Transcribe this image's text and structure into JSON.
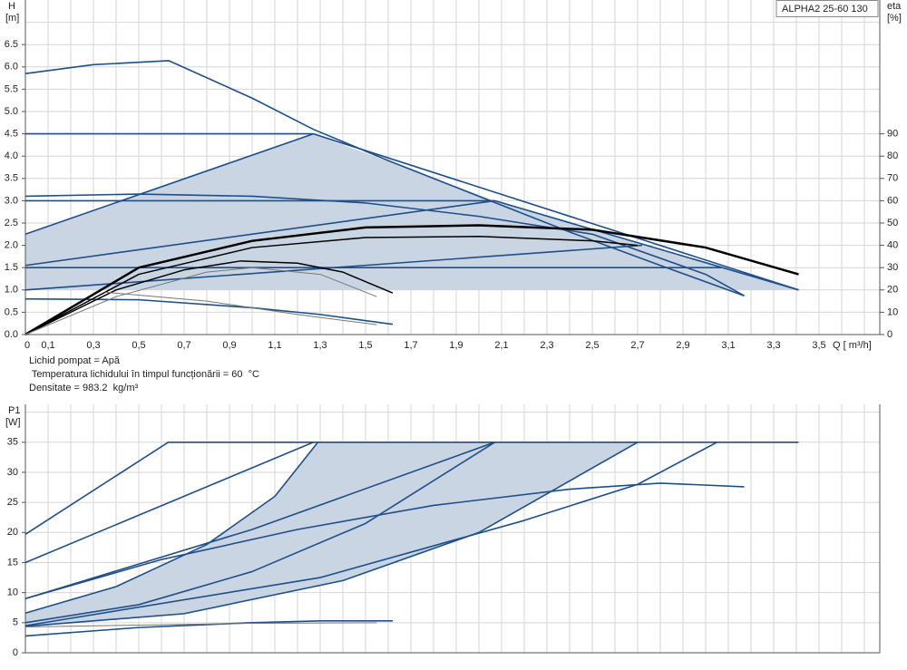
{
  "chart_data": [
    {
      "type": "line",
      "title": "ALPHA2 25-60 130",
      "y_label": "H",
      "y_unit": "[m]",
      "y2_label": "eta",
      "y2_unit": "[%]",
      "x_label": "Q [ m³/h]",
      "notes": [
        "Lichid pompat = Apă",
        " Temperatura lichidului în timpul funcționării = 60  °C",
        "Densitate = 983.2  kg/m³"
      ],
      "xlim": [
        0,
        3.768
      ],
      "xticks": [
        0,
        {
          "value": 0.1,
          "label": "0,1"
        },
        {
          "value": 0.3,
          "label": "0,3"
        },
        {
          "value": 0.5,
          "label": "0,5"
        },
        {
          "value": 0.7,
          "label": "0,7"
        },
        {
          "value": 0.9,
          "label": "0,9"
        },
        {
          "value": 1.1,
          "label": "1,1"
        },
        {
          "value": 1.3,
          "label": "1,3"
        },
        {
          "value": 1.5,
          "label": "1,5"
        },
        {
          "value": 1.7,
          "label": "1,7"
        },
        {
          "value": 1.9,
          "label": "1,9"
        },
        {
          "value": 2.1,
          "label": "2,1"
        },
        {
          "value": 2.3,
          "label": "2,3"
        },
        {
          "value": 2.5,
          "label": "2,5"
        },
        {
          "value": 2.7,
          "label": "2,7"
        },
        {
          "value": 2.9,
          "label": "2,9"
        },
        {
          "value": 3.1,
          "label": "3,1"
        },
        {
          "value": 3.3,
          "label": "3,3"
        },
        {
          "value": 3.5,
          "label": "3,5"
        }
      ],
      "ylim": [
        0,
        7.5
      ],
      "yticks": [
        {
          "value": 0,
          "label": "0.0"
        },
        0.5,
        {
          "value": 1,
          "label": "1.0"
        },
        1.5,
        {
          "value": 2,
          "label": "2.0"
        },
        2.5,
        {
          "value": 3,
          "label": "3.0"
        },
        3.5,
        {
          "value": 4,
          "label": "4.0"
        },
        4.5,
        {
          "value": 5,
          "label": "5.0"
        },
        5.5,
        {
          "value": 6,
          "label": "6.0"
        },
        6.5
      ],
      "y2lim": [
        0,
        150
      ],
      "y2ticks": [
        0,
        10,
        20,
        30,
        40,
        50,
        60,
        70,
        80,
        90
      ],
      "grid": true,
      "region": {
        "color": "#c9d5e3",
        "x": [
          0,
          1.27,
          2.07,
          3.41,
          0
        ],
        "y": [
          2.25,
          4.5,
          3.0,
          1.0,
          1.0
        ]
      },
      "series": [
        {
          "color": "#1d4f8a",
          "x": [
            0,
            0.3,
            0.632,
            1.0,
            1.27,
            1.6,
            2.0,
            2.4,
            2.8,
            3.17
          ],
          "values": [
            5.85,
            6.05,
            6.14,
            5.3,
            4.6,
            3.9,
            3.1,
            2.3,
            1.55,
            0.87
          ]
        },
        {
          "color": "#1d4f8a",
          "x": [
            0,
            1.27,
            3.41
          ],
          "values": [
            2.25,
            4.5,
            1.0
          ]
        },
        {
          "color": "#1d4f8a",
          "x": [
            0,
            1.27
          ],
          "values": [
            4.5,
            4.5
          ]
        },
        {
          "color": "#1d4f8a",
          "x": [
            0,
            2.07,
            3.41
          ],
          "values": [
            1.55,
            3.0,
            1.0
          ]
        },
        {
          "color": "#1d4f8a",
          "x": [
            0,
            2.07
          ],
          "values": [
            3.0,
            3.0
          ]
        },
        {
          "color": "#1d4f8a",
          "x": [
            0,
            2.72
          ],
          "values": [
            1.0,
            2.0
          ]
        },
        {
          "color": "#1d4f8a",
          "x": [
            0,
            3.07
          ],
          "values": [
            1.5,
            1.5
          ]
        },
        {
          "color": "#1d4f8a",
          "x": [
            0,
            0.5,
            1.0,
            1.5,
            2.0,
            2.5,
            3.0,
            3.17
          ],
          "values": [
            3.1,
            3.15,
            3.1,
            2.95,
            2.65,
            2.25,
            1.35,
            0.87
          ]
        },
        {
          "color": "#1d4f8a",
          "x": [
            0,
            0.5,
            1.0,
            1.3,
            1.62
          ],
          "values": [
            0.8,
            0.78,
            0.6,
            0.45,
            0.23
          ]
        },
        {
          "color": "#000000",
          "width": 2.5,
          "axis": "y2",
          "x": [
            0,
            0.5,
            1.0,
            1.5,
            2.0,
            2.5,
            3.0,
            3.41
          ],
          "values": [
            0,
            30,
            42,
            48,
            49,
            47,
            39,
            27
          ]
        },
        {
          "color": "#000000",
          "width": 1.5,
          "axis": "y2",
          "x": [
            0,
            0.5,
            1.0,
            1.5,
            2.0,
            2.5,
            2.7
          ],
          "values": [
            0,
            27,
            39,
            43.5,
            44,
            42,
            40
          ]
        },
        {
          "color": "#000000",
          "width": 1.5,
          "axis": "y2",
          "x": [
            0,
            0.4,
            0.7,
            0.95,
            1.2,
            1.4,
            1.62
          ],
          "values": [
            0,
            20,
            29,
            33,
            32,
            28,
            18.6
          ]
        },
        {
          "color": "#777777",
          "width": 1,
          "axis": "y2",
          "x": [
            0,
            0.4,
            0.8,
            1.0,
            1.3,
            1.55
          ],
          "values": [
            0,
            17,
            28,
            30,
            27,
            17
          ]
        },
        {
          "color": "#777777",
          "width": 1,
          "x": [
            0.35,
            0.8,
            1.2,
            1.55
          ],
          "values": [
            0.95,
            0.75,
            0.45,
            0.22
          ]
        }
      ]
    },
    {
      "type": "line",
      "y_label": "P1",
      "y_unit": "[W]",
      "xlim": [
        0,
        3.768
      ],
      "xticks": [
        0.1,
        0.3,
        0.5,
        0.7,
        0.9,
        1.1,
        1.3,
        1.5,
        1.7,
        1.9,
        2.1,
        2.3,
        2.5,
        2.7,
        2.9,
        3.1,
        3.3,
        3.5
      ],
      "ylim": [
        0,
        41.3
      ],
      "yticks": [
        0,
        5,
        10,
        15,
        20,
        25,
        30,
        35
      ],
      "grid": true,
      "region": {
        "color": "#c9d5e3",
        "x": [
          0,
          0.4,
          0.8,
          1.1,
          1.29,
          2.7,
          2.0,
          1.4,
          0.7,
          0
        ],
        "y": [
          6.6,
          11,
          18,
          26,
          35,
          35,
          20,
          12,
          6.5,
          4.4
        ]
      },
      "series": [
        {
          "color": "#1d4f8a",
          "x": [
            0,
            0.63,
            3.41
          ],
          "values": [
            19.7,
            35,
            35
          ]
        },
        {
          "color": "#1d4f8a",
          "x": [
            0,
            1.27
          ],
          "values": [
            15,
            35
          ]
        },
        {
          "color": "#1d4f8a",
          "x": [
            0,
            0.4,
            0.8,
            1.1,
            1.29
          ],
          "values": [
            6.6,
            11,
            18,
            26,
            35
          ]
        },
        {
          "color": "#1d4f8a",
          "x": [
            0,
            1.0,
            2.07
          ],
          "values": [
            9,
            20.5,
            35
          ]
        },
        {
          "color": "#1d4f8a",
          "x": [
            0,
            0.5,
            1.0,
            1.5,
            2.07
          ],
          "values": [
            5,
            8,
            13.5,
            21.5,
            35
          ]
        },
        {
          "color": "#1d4f8a",
          "x": [
            0,
            0.7,
            1.4,
            2.0,
            2.7
          ],
          "values": [
            4.4,
            6.5,
            12,
            20,
            35
          ]
        },
        {
          "color": "#1d4f8a",
          "x": [
            0,
            1.3,
            2.2,
            2.7,
            3.05
          ],
          "values": [
            4.5,
            12.5,
            22,
            28,
            35
          ]
        },
        {
          "color": "#1d4f8a",
          "x": [
            0,
            0.6,
            1.2,
            1.8,
            2.4,
            2.8,
            3.17
          ],
          "values": [
            9,
            15.5,
            20.5,
            24.5,
            27.2,
            28.2,
            27.6
          ]
        },
        {
          "color": "#1d4f8a",
          "x": [
            0,
            0.5,
            1.0,
            1.3,
            1.62
          ],
          "values": [
            2.8,
            4.2,
            5.0,
            5.3,
            5.3
          ]
        },
        {
          "color": "#777777",
          "width": 1,
          "x": [
            0,
            0.5,
            1.0,
            1.55
          ],
          "values": [
            4.3,
            4.6,
            4.9,
            5.0
          ]
        }
      ]
    }
  ]
}
